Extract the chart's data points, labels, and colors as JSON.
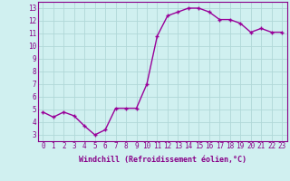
{
  "x": [
    0,
    1,
    2,
    3,
    4,
    5,
    6,
    7,
    8,
    9,
    10,
    11,
    12,
    13,
    14,
    15,
    16,
    17,
    18,
    19,
    20,
    21,
    22,
    23
  ],
  "y": [
    4.8,
    4.4,
    4.8,
    4.5,
    3.7,
    3.0,
    3.4,
    5.1,
    5.1,
    5.1,
    7.0,
    10.8,
    12.4,
    12.7,
    13.0,
    13.0,
    12.7,
    12.1,
    12.1,
    11.8,
    11.1,
    11.4,
    11.1,
    11.1
  ],
  "line_color": "#990099",
  "marker": "+",
  "marker_size": 3,
  "line_width": 1.0,
  "xlabel": "Windchill (Refroidissement éolien,°C)",
  "xlabel_fontsize": 6.0,
  "ylabel_ticks": [
    3,
    4,
    5,
    6,
    7,
    8,
    9,
    10,
    11,
    12,
    13
  ],
  "xtick_labels": [
    "0",
    "1",
    "2",
    "3",
    "4",
    "5",
    "6",
    "7",
    "8",
    "9",
    "10",
    "11",
    "12",
    "13",
    "14",
    "15",
    "16",
    "17",
    "18",
    "19",
    "20",
    "21",
    "22",
    "23"
  ],
  "xlim": [
    -0.5,
    23.5
  ],
  "ylim": [
    2.5,
    13.5
  ],
  "bg_color": "#d0f0f0",
  "grid_color": "#b0d8d8",
  "tick_fontsize": 5.5,
  "label_color": "#880088"
}
